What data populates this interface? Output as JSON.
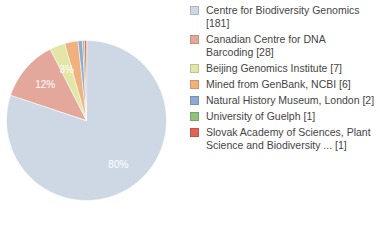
{
  "chart_data": {
    "type": "pie",
    "categories": [
      "Centre for Biodiversity Genomics [181]",
      "Canadian Centre for DNA Barcoding [28]",
      "Beijing Genomics Institute [7]",
      "Mined from GenBank, NCBI [6]",
      "Natural History Museum, London [2]",
      "University of Guelph [1]",
      "Slovak Academy of Sciences, Plant Science and Biodiversity ... [1]"
    ],
    "values": [
      80.1,
      12.4,
      3.1,
      2.7,
      0.9,
      0.4,
      0.4
    ],
    "value_labels": [
      "80%",
      "12%",
      "3%",
      null,
      null,
      null,
      null
    ],
    "colors": [
      "#cdd8e4",
      "#e3a89b",
      "#e2e6a6",
      "#efb27e",
      "#8eaad2",
      "#8ec27c",
      "#e06552"
    ],
    "data_labels": true,
    "legend": "right"
  }
}
